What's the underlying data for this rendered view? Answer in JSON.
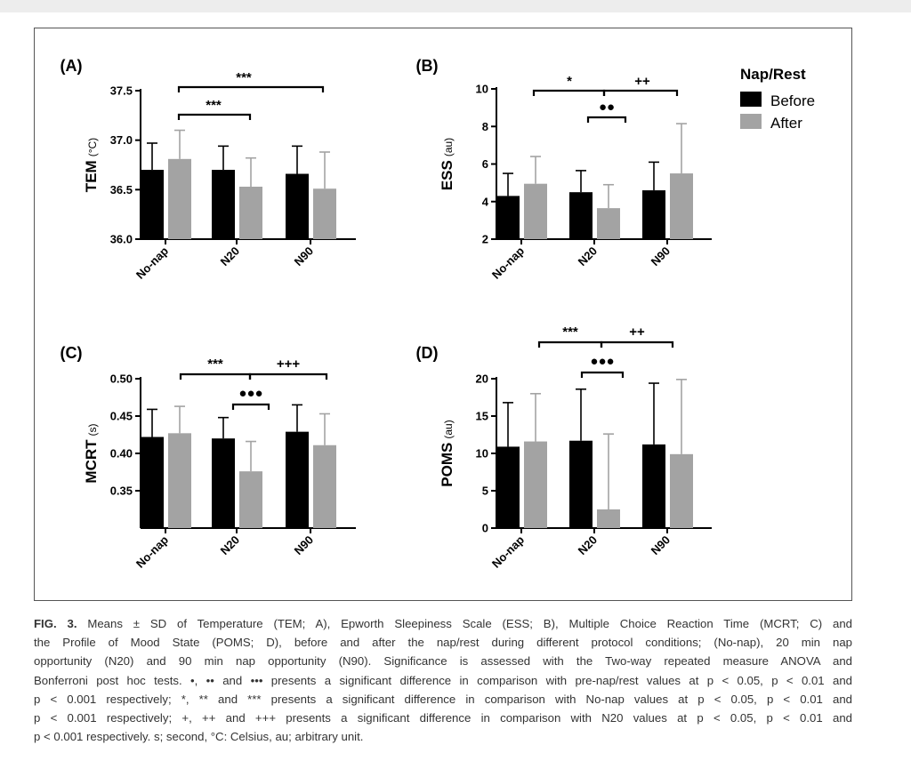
{
  "chart_data": [
    {
      "type": "bar",
      "panel": "(A)",
      "ylabel": "TEM",
      "yunit": "(°C)",
      "ylim": [
        36.0,
        37.5
      ],
      "yticks": [
        "36.0",
        "36.5",
        "37.0",
        "37.5"
      ],
      "categories": [
        "No-nap",
        "N20",
        "N90"
      ],
      "series": [
        {
          "name": "Before",
          "values": [
            36.7,
            36.7,
            36.66
          ],
          "sd": [
            0.27,
            0.24,
            0.28
          ]
        },
        {
          "name": "After",
          "values": [
            36.81,
            36.53,
            36.51
          ],
          "sd": [
            0.29,
            0.29,
            0.37
          ]
        }
      ],
      "annotations": [
        {
          "label": "***",
          "from": "No-nap",
          "to": "N90"
        },
        {
          "label": "***",
          "from": "No-nap",
          "to": "N20"
        }
      ]
    },
    {
      "type": "bar",
      "panel": "(B)",
      "ylabel": "ESS",
      "yunit": "(au)",
      "ylim": [
        2,
        10
      ],
      "yticks": [
        "2",
        "4",
        "6",
        "8",
        "10"
      ],
      "categories": [
        "No-nap",
        "N20",
        "N90"
      ],
      "series": [
        {
          "name": "Before",
          "values": [
            4.3,
            4.5,
            4.6
          ],
          "sd": [
            1.2,
            1.15,
            1.5
          ]
        },
        {
          "name": "After",
          "values": [
            4.95,
            3.65,
            5.5
          ],
          "sd": [
            1.45,
            1.25,
            2.65
          ]
        }
      ],
      "annotations": [
        {
          "label": "*",
          "from": "No-nap",
          "to": "N20"
        },
        {
          "label": "++",
          "from": "N20",
          "to": "N90"
        },
        {
          "label": "●●",
          "from": "N20",
          "to": "N20"
        }
      ]
    },
    {
      "type": "bar",
      "panel": "(C)",
      "ylabel": "MCRT",
      "yunit": "(s)",
      "ylim": [
        0.3,
        0.5
      ],
      "yticks": [
        "0.35",
        "0.40",
        "0.45",
        "0.50"
      ],
      "categories": [
        "No-nap",
        "N20",
        "N90"
      ],
      "series": [
        {
          "name": "Before",
          "values": [
            0.422,
            0.42,
            0.429
          ],
          "sd": [
            0.037,
            0.028,
            0.036
          ]
        },
        {
          "name": "After",
          "values": [
            0.427,
            0.376,
            0.411
          ],
          "sd": [
            0.036,
            0.04,
            0.042
          ]
        }
      ],
      "annotations": [
        {
          "label": "***",
          "from": "No-nap",
          "to": "N20"
        },
        {
          "label": "+++",
          "from": "N20",
          "to": "N90"
        },
        {
          "label": "●●●",
          "from": "N20",
          "to": "N20"
        }
      ]
    },
    {
      "type": "bar",
      "panel": "(D)",
      "ylabel": "POMS",
      "yunit": "(au)",
      "ylim": [
        0,
        20
      ],
      "yticks": [
        "0",
        "5",
        "10",
        "15",
        "20"
      ],
      "categories": [
        "No-nap",
        "N20",
        "N90"
      ],
      "series": [
        {
          "name": "Before",
          "values": [
            10.9,
            11.7,
            11.2
          ],
          "sd": [
            5.9,
            6.9,
            8.2
          ]
        },
        {
          "name": "After",
          "values": [
            11.6,
            2.5,
            9.9
          ],
          "sd": [
            6.4,
            10.1,
            10.0
          ]
        }
      ],
      "annotations": [
        {
          "label": "***",
          "from": "No-nap",
          "to": "N20"
        },
        {
          "label": "++",
          "from": "N20",
          "to": "N90"
        },
        {
          "label": "●●●",
          "from": "N20",
          "to": "N20"
        }
      ]
    }
  ],
  "legend": {
    "title": "Nap/Rest",
    "items": [
      {
        "label": "Before",
        "color": "#000000"
      },
      {
        "label": "After",
        "color": "#a3a3a3"
      }
    ]
  },
  "colors": {
    "before": "#000000",
    "after": "#a3a3a3",
    "axis": "#000000"
  },
  "caption": {
    "fig_label": "FIG. 3.",
    "lines": [
      "Means ± SD of Temperature (TEM; A), Epworth Sleepiness Scale (ESS; B), Multiple Choice Reaction Time (MCRT; C) and",
      "the Profile of Mood State (POMS; D), before and after the nap/rest during different protocol conditions; (No-nap), 20 min nap",
      "opportunity (N20) and 90 min nap opportunity (N90). Significance is assessed with the Two-way repeated measure ANOVA and",
      "Bonferroni post hoc tests. •, •• and ••• presents a significant difference in comparison with pre-nap/rest values at p < 0.05, p < 0.01 and",
      "p < 0.001 respectively; *, ** and *** presents a significant difference in comparison with No-nap values at p < 0.05, p < 0.01 and",
      "p < 0.001 respectively; +, ++ and +++ presents a significant difference in comparison with N20 values at p < 0.05, p < 0.01 and",
      "p < 0.001 respectively. s; second, °C: Celsius, au; arbitrary unit."
    ]
  }
}
